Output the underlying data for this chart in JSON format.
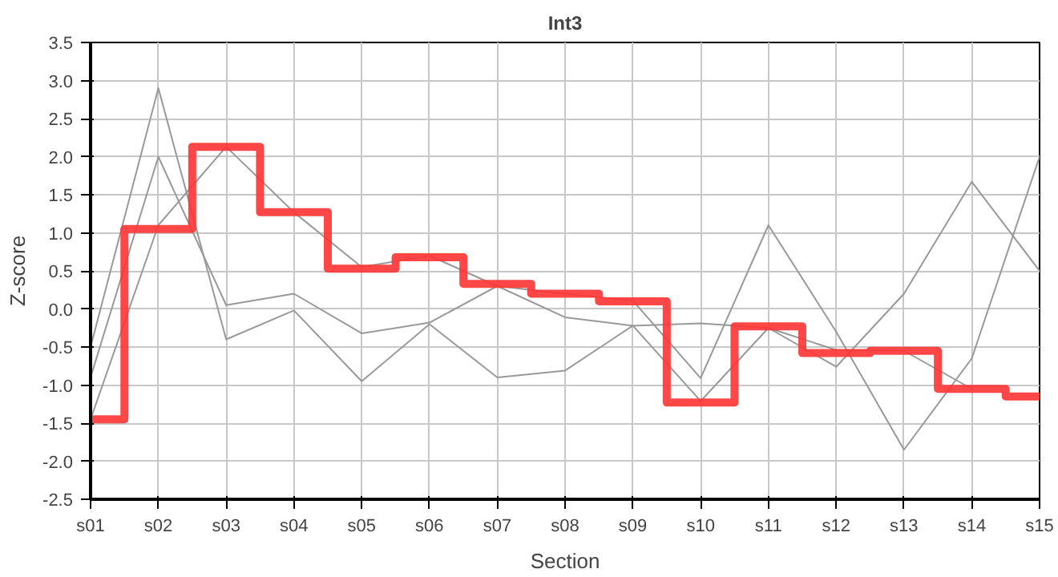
{
  "chart_data": {
    "type": "line",
    "title": "Int3",
    "xlabel": "Section",
    "ylabel": "Z-score",
    "categories": [
      "s01",
      "s02",
      "s03",
      "s04",
      "s05",
      "s06",
      "s07",
      "s08",
      "s09",
      "s10",
      "s11",
      "s12",
      "s13",
      "s14",
      "s15"
    ],
    "ylim": [
      -2.5,
      3.5
    ],
    "yticks": [
      {
        "value": -2.5,
        "label": "-2.5"
      },
      {
        "value": -2,
        "label": "-2.0"
      },
      {
        "value": -1.5,
        "label": "-1.5"
      },
      {
        "value": -1,
        "label": "-1.0"
      },
      {
        "value": -0.5,
        "label": "-0.5"
      },
      {
        "value": 0,
        "label": "0.0"
      },
      {
        "value": 0.5,
        "label": "0.5"
      },
      {
        "value": 1,
        "label": "1.0"
      },
      {
        "value": 1.5,
        "label": "1.5"
      },
      {
        "value": 2,
        "label": "2.0"
      },
      {
        "value": 2.5,
        "label": "2.5"
      },
      {
        "value": 3,
        "label": "3.0"
      },
      {
        "value": 3.5,
        "label": "3.5"
      }
    ],
    "grid": true,
    "series": [
      {
        "color": "#999999",
        "values": [
          -0.5,
          2.9,
          -0.4,
          -0.02,
          -0.95,
          -0.2,
          -0.9,
          -0.81,
          -0.22,
          -1.21,
          -0.25,
          -0.76,
          0.2,
          1.67,
          0.5
        ]
      },
      {
        "color": "#999999",
        "values": [
          -0.9,
          2.0,
          0.05,
          0.2,
          -0.32,
          -0.18,
          0.3,
          0.2,
          0.11,
          -0.91,
          1.1,
          -0.3,
          -1.85,
          -0.65,
          2.0
        ]
      },
      {
        "color": "#999999",
        "values": [
          -1.45,
          1.1,
          2.13,
          1.27,
          0.55,
          0.7,
          0.3,
          -0.11,
          -0.22,
          -0.19,
          -0.25,
          -0.54,
          -0.55,
          -1.05,
          null
        ]
      },
      {
        "type": "step",
        "color": "#ff3333",
        "values": [
          -1.45,
          1.05,
          2.13,
          1.27,
          0.53,
          0.68,
          0.33,
          0.2,
          0.1,
          -1.23,
          -0.23,
          -0.58,
          -0.55,
          -1.05,
          -1.15
        ]
      }
    ]
  }
}
